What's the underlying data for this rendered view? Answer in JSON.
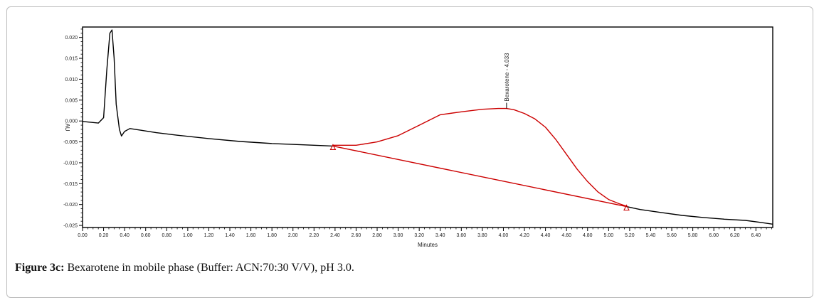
{
  "figure": {
    "caption_label": "Figure 3c:",
    "caption_text": " Bexarotene in mobile phase (Buffer: ACN:70:30 V/V), pH 3.0."
  },
  "chart_data": {
    "type": "line",
    "xlabel": "Minutes",
    "ylabel": "AU",
    "xlim": [
      0.0,
      6.56
    ],
    "ylim": [
      -0.0255,
      0.0225
    ],
    "x_ticks": [
      "0.00",
      "0.20",
      "0.40",
      "0.60",
      "0.80",
      "1.00",
      "1.20",
      "1.40",
      "1.60",
      "1.80",
      "2.00",
      "2.20",
      "2.40",
      "2.60",
      "2.80",
      "3.00",
      "3.20",
      "3.40",
      "3.60",
      "3.80",
      "4.00",
      "4.20",
      "4.40",
      "4.60",
      "4.80",
      "5.00",
      "5.20",
      "5.40",
      "5.60",
      "5.80",
      "6.00",
      "6.20",
      "6.40"
    ],
    "y_ticks": [
      "0.020",
      "0.015",
      "0.010",
      "0.005",
      "0.000",
      "-0.005",
      "-0.010",
      "-0.015",
      "-0.020",
      "-0.025"
    ],
    "series": [
      {
        "color": "#000000",
        "x": [
          0.0,
          0.15,
          0.2,
          0.23,
          0.26,
          0.28,
          0.3,
          0.32,
          0.35,
          0.37,
          0.4,
          0.45,
          0.55,
          0.7,
          0.9,
          1.2,
          1.5,
          1.8,
          2.1,
          2.38
        ],
        "y": [
          -0.0001,
          -0.0005,
          0.0008,
          0.012,
          0.021,
          0.0218,
          0.015,
          0.004,
          -0.002,
          -0.0036,
          -0.0025,
          -0.0018,
          -0.0022,
          -0.0028,
          -0.0034,
          -0.0042,
          -0.0049,
          -0.0054,
          -0.0057,
          -0.006
        ]
      },
      {
        "color": "#000000",
        "x": [
          5.17,
          5.3,
          5.5,
          5.7,
          5.9,
          6.1,
          6.3,
          6.45,
          6.56
        ],
        "y": [
          -0.0205,
          -0.0212,
          -0.0219,
          -0.0226,
          -0.0231,
          -0.0235,
          -0.0238,
          -0.0243,
          -0.0247
        ]
      },
      {
        "color": "#cc0000",
        "x": [
          2.38,
          2.6,
          2.8,
          3.0,
          3.2,
          3.4,
          3.6,
          3.8,
          3.95,
          4.03,
          4.1,
          4.2,
          4.3,
          4.4,
          4.5,
          4.6,
          4.7,
          4.8,
          4.9,
          5.0,
          5.1,
          5.17
        ],
        "y": [
          -0.0058,
          -0.0058,
          -0.005,
          -0.0035,
          -0.001,
          0.0015,
          0.0022,
          0.0028,
          0.003,
          0.003,
          0.0027,
          0.0018,
          0.0005,
          -0.0015,
          -0.0045,
          -0.008,
          -0.0115,
          -0.0145,
          -0.017,
          -0.0188,
          -0.0198,
          -0.0204
        ]
      },
      {
        "color": "#cc0000",
        "x": [
          2.38,
          5.17
        ],
        "y": [
          -0.006,
          -0.0205
        ]
      }
    ],
    "markers": [
      {
        "x": 2.38,
        "y": -0.006,
        "shape": "triangle",
        "color": "#cc0000"
      },
      {
        "x": 5.17,
        "y": -0.0205,
        "shape": "triangle",
        "color": "#cc0000"
      }
    ],
    "annotations": [
      {
        "text": "Bexarotene - 4.033",
        "x": 4.03,
        "y": 0.003
      }
    ],
    "grid": false
  }
}
